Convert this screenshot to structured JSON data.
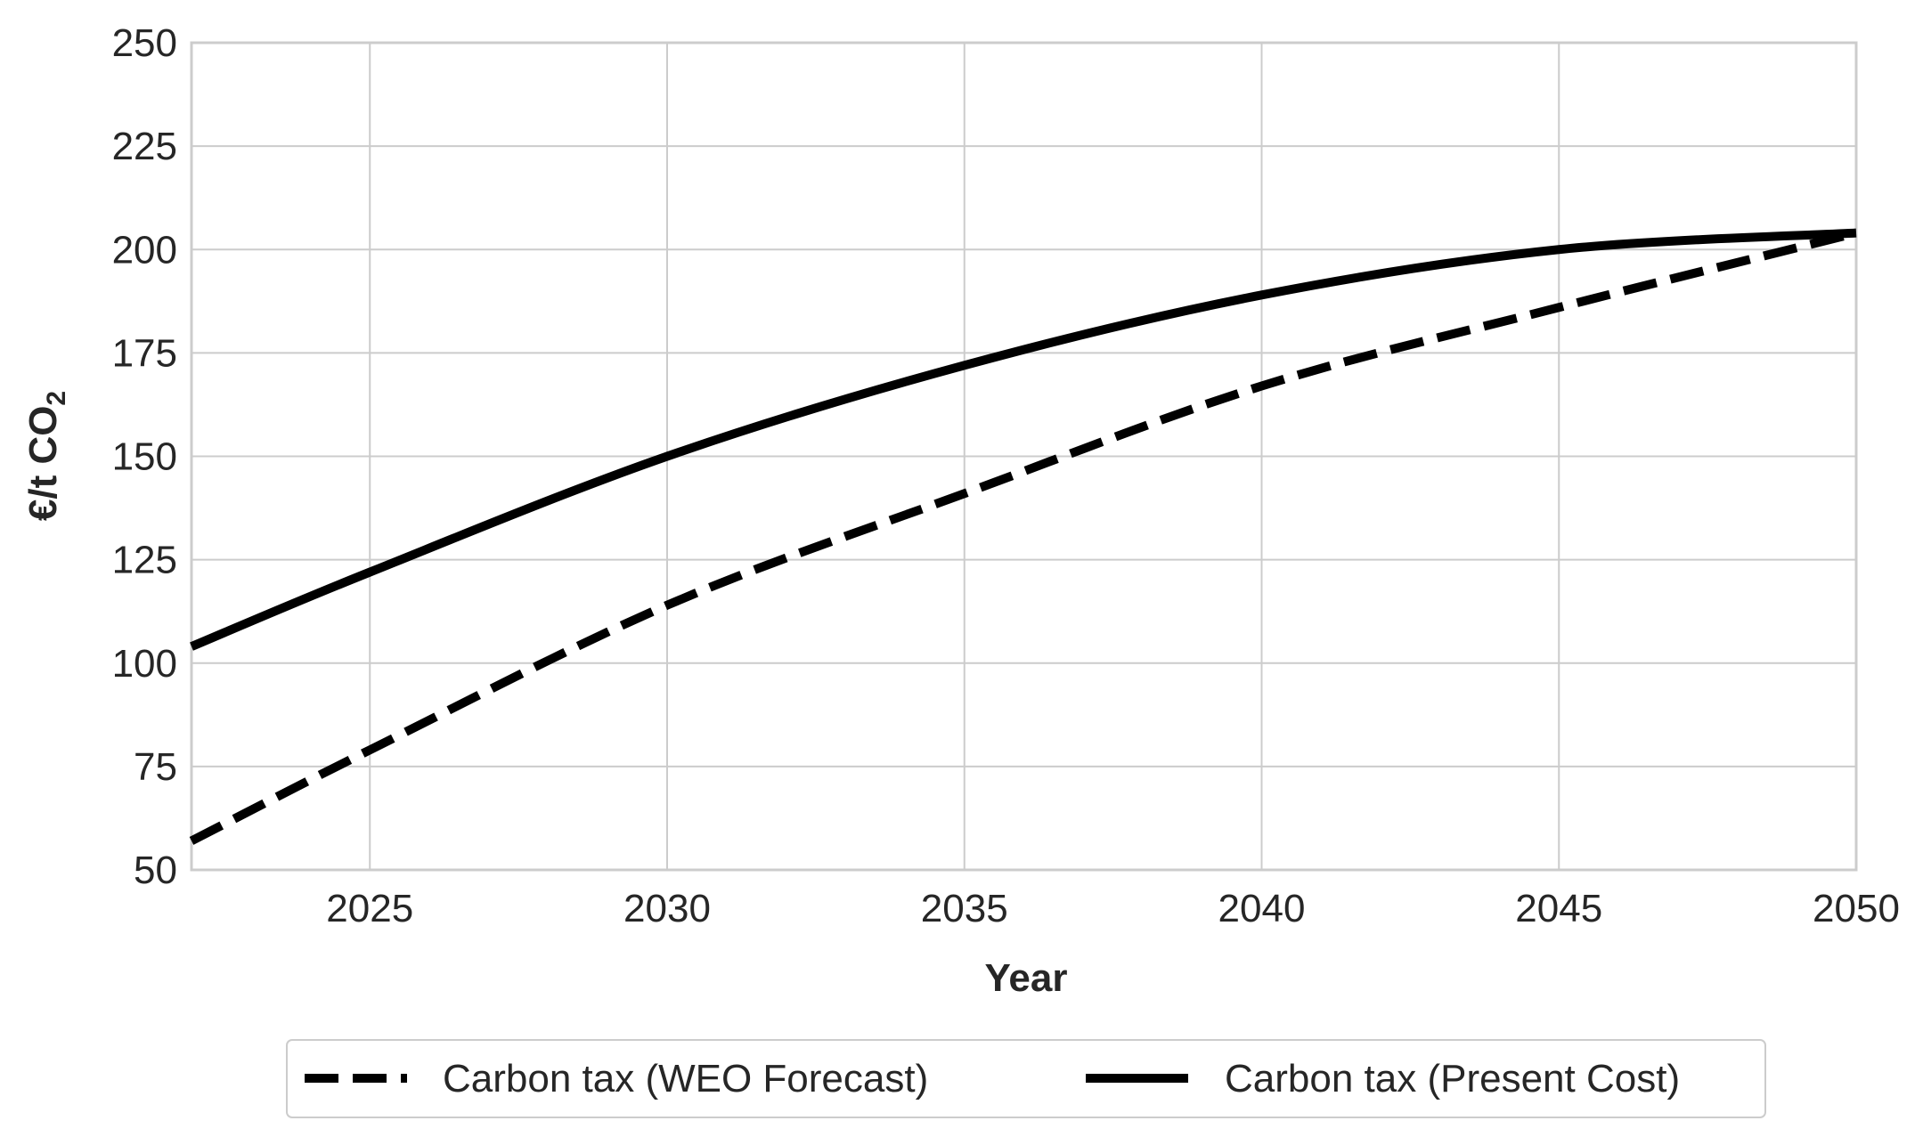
{
  "chart_data": {
    "type": "line",
    "title": "",
    "xlabel": "Year",
    "ylabel": "€/t CO",
    "ylabel_subscript": "2",
    "xlim": [
      2022,
      2050
    ],
    "ylim": [
      50,
      250
    ],
    "xticks": [
      "2025",
      "2030",
      "2035",
      "2040",
      "2045",
      "2050"
    ],
    "yticks": [
      "50",
      "75",
      "100",
      "125",
      "150",
      "175",
      "200",
      "225",
      "250"
    ],
    "grid": true,
    "legend_position": "bottom-center, below plot",
    "colors": {
      "lines": "#000000",
      "grid": "#cccccc",
      "axes": "#cccccc",
      "text": "#262626"
    },
    "series": [
      {
        "name": "Carbon tax (WEO Forecast)",
        "style": "dashed",
        "x": [
          2022,
          2025,
          2030,
          2035,
          2040,
          2045,
          2050
        ],
        "y": [
          57,
          79,
          114,
          141,
          167,
          186,
          204
        ]
      },
      {
        "name": "Carbon tax (Present Cost)",
        "style": "solid",
        "x": [
          2022,
          2025,
          2030,
          2035,
          2040,
          2045,
          2050
        ],
        "y": [
          104,
          122,
          150,
          172,
          189,
          200,
          204
        ]
      }
    ]
  }
}
